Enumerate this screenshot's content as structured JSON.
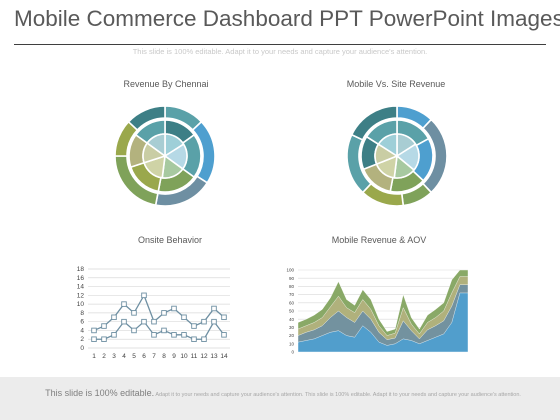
{
  "slide": {
    "title": "Mobile Commerce Dashboard PPT PowerPoint Images",
    "subtitle": "This slide is 100% editable. Adapt it to your needs and capture your audience's attention."
  },
  "panels": {
    "revenue_chennai": {
      "label": "Revenue By Chennai"
    },
    "mobile_vs_site": {
      "label": "Mobile Vs. Site Revenue"
    },
    "onsite_behavior": {
      "label": "Onsite Behavior"
    },
    "mobile_revenue_aov": {
      "label": "Mobile Revenue & AOV"
    }
  },
  "colors": {
    "title": "#595959",
    "teal_dark": "#3d7f86",
    "teal": "#5aa1a8",
    "blue": "#4e9fcf",
    "slate": "#6e8fa2",
    "olive": "#9aa84c",
    "olive_light": "#c5c98a",
    "green": "#7fa25a",
    "khaki": "#b3b27e",
    "footer_bg": "#ececec"
  },
  "footer": {
    "lead": "This slide is 100% editable.",
    "text": "Adapt it to your needs and capture your audience's attention. This slide is 100% editable. Adapt it to your needs and capture your audience's attention."
  },
  "chart_data": [
    {
      "type": "pie",
      "panel": "revenue_chennai",
      "rings": [
        {
          "values": [
            0.13,
            0.21,
            0.19,
            0.22,
            0.12,
            0.13
          ],
          "colors": [
            "#5aa1a8",
            "#4e9fcf",
            "#6e8fa2",
            "#7fa25a",
            "#9aa84c",
            "#3d7f86"
          ]
        },
        {
          "values": [
            0.15,
            0.2,
            0.18,
            0.17,
            0.15,
            0.15
          ],
          "colors": [
            "#3d7f86",
            "#5aa1a8",
            "#7fa25a",
            "#9aa84c",
            "#b3b27e",
            "#5aa1a8"
          ]
        },
        {
          "values": [
            0.16,
            0.19,
            0.17,
            0.18,
            0.15,
            0.15
          ],
          "colors": [
            "#9ecfd8",
            "#b6d9e6",
            "#a7c9a0",
            "#cfd3a6",
            "#c9cda4",
            "#a8cdd3"
          ]
        }
      ]
    },
    {
      "type": "pie",
      "panel": "mobile_vs_site",
      "rings": [
        {
          "values": [
            0.12,
            0.26,
            0.1,
            0.14,
            0.2,
            0.18
          ],
          "colors": [
            "#4e9fcf",
            "#6e8fa2",
            "#7fa25a",
            "#9aa84c",
            "#5aa1a8",
            "#3d7f86"
          ]
        },
        {
          "values": [
            0.17,
            0.2,
            0.16,
            0.16,
            0.15,
            0.16
          ],
          "colors": [
            "#5aa1a8",
            "#4e9fcf",
            "#7fa25a",
            "#b3b27e",
            "#3d7f86",
            "#5aa1a8"
          ]
        },
        {
          "values": [
            0.16,
            0.2,
            0.16,
            0.17,
            0.15,
            0.16
          ],
          "colors": [
            "#a8cdd3",
            "#b6d9e6",
            "#a7c9a0",
            "#cfd3a6",
            "#c9cda4",
            "#9ecfd8"
          ]
        }
      ]
    },
    {
      "type": "line",
      "panel": "onsite_behavior",
      "x": [
        1,
        2,
        3,
        4,
        5,
        6,
        7,
        8,
        9,
        10,
        11,
        12,
        13,
        14
      ],
      "xticks": [
        "1",
        "2",
        "3",
        "4",
        "5",
        "6",
        "7",
        "8",
        "9",
        "10",
        "11",
        "12",
        "13",
        "14"
      ],
      "yticks": [
        "0",
        "2",
        "4",
        "6",
        "8",
        "10",
        "12",
        "14",
        "16",
        "18"
      ],
      "ylim": [
        0,
        18
      ],
      "grid": true,
      "series": [
        {
          "values": [
            4,
            5,
            7,
            10,
            8,
            12,
            6,
            8,
            9,
            7,
            5,
            6,
            9,
            7
          ],
          "color": "#6e8fa2"
        },
        {
          "values": [
            2,
            2,
            3,
            6,
            4,
            6,
            3,
            4,
            3,
            3,
            2,
            2,
            6,
            3
          ],
          "color": "#6e8fa2"
        }
      ]
    },
    {
      "type": "area",
      "panel": "mobile_revenue_aov",
      "x": [
        1,
        2,
        3,
        4,
        5,
        6,
        7,
        8,
        9,
        10,
        11,
        12,
        13,
        14,
        15,
        16,
        17,
        18,
        19,
        20,
        21,
        22
      ],
      "yticks": [
        "0",
        "10",
        "20",
        "30",
        "40",
        "50",
        "60",
        "70",
        "80",
        "90",
        "100"
      ],
      "ylim": [
        0,
        100
      ],
      "grid": true,
      "series": [
        {
          "values": [
            36,
            40,
            45,
            52,
            66,
            86,
            64,
            57,
            76,
            64,
            40,
            25,
            28,
            70,
            42,
            28,
            45,
            52,
            60,
            88,
            100,
            100
          ],
          "color": "#7fa25a"
        },
        {
          "values": [
            28,
            32,
            36,
            42,
            55,
            68,
            54,
            48,
            64,
            52,
            32,
            20,
            23,
            54,
            34,
            22,
            36,
            42,
            50,
            72,
            92,
            92
          ],
          "color": "#b3b27e"
        },
        {
          "values": [
            20,
            24,
            27,
            32,
            42,
            50,
            42,
            36,
            50,
            40,
            24,
            15,
            17,
            38,
            26,
            16,
            27,
            32,
            38,
            56,
            82,
            82
          ],
          "color": "#6e8fa2"
        },
        {
          "values": [
            12,
            14,
            16,
            20,
            24,
            26,
            20,
            18,
            32,
            24,
            12,
            8,
            10,
            16,
            14,
            10,
            14,
            18,
            22,
            36,
            72,
            72
          ],
          "color": "#4e9fcf"
        }
      ]
    }
  ]
}
